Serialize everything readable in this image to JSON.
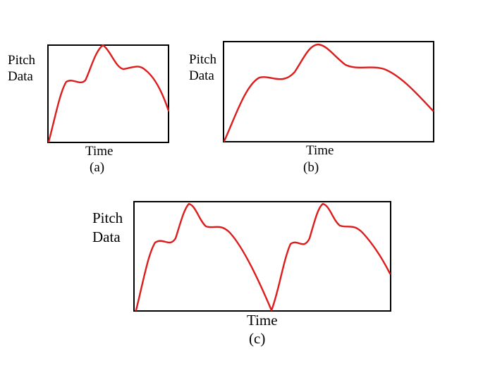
{
  "colors": {
    "curve": "#dd1c1c",
    "frame": "#000000"
  },
  "panels": [
    {
      "ylabel_line1": "Pitch",
      "ylabel_line2": "Data",
      "xlabel": "Time",
      "caption": "(a)"
    },
    {
      "ylabel_line1": "Pitch",
      "ylabel_line2": "Data",
      "xlabel": "Time",
      "caption": "(b)"
    },
    {
      "ylabel_line1": "Pitch",
      "ylabel_line2": "Data",
      "xlabel": "Time",
      "caption": "(c)"
    }
  ]
}
